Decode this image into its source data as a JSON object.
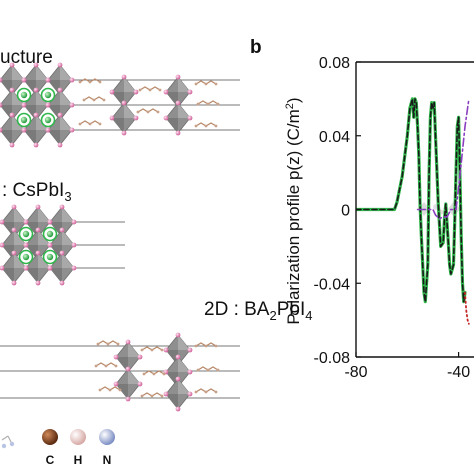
{
  "left_panel": {
    "title_fragment": "ucture",
    "label_3d": ": CsPbI",
    "label_3d_sub": "3",
    "label_2d": "2D : BA",
    "label_2d_sub": "2",
    "label_2d_rest": "PbI",
    "label_2d_sub2": "4",
    "legend_atoms": [
      "C",
      "H",
      "N"
    ],
    "atom_colors": {
      "C": "#8a4a22",
      "H": "#e8c7c4",
      "N": "#aab8d8",
      "I": "#d0609a",
      "Cs": "#2fb64a",
      "octahedron": "#8f8f8f"
    }
  },
  "right_panel": {
    "panel_letter": "b"
  },
  "chart_data": {
    "type": "line",
    "title": "",
    "ylabel": "Polarization profile p(z) (C/m",
    "ylabel_sup": "2",
    "ylabel_close": ")",
    "xlabel": "",
    "xlim": [
      -80,
      -34
    ],
    "ylim": [
      -0.08,
      0.08
    ],
    "x_ticks": [
      "-80",
      "-40"
    ],
    "x_tick_values": [
      -80,
      -40
    ],
    "y_ticks": [
      "0.08",
      "0.04",
      "0",
      "-0.04",
      "-0.08"
    ],
    "y_tick_values": [
      0.08,
      0.04,
      0,
      -0.04,
      -0.08
    ],
    "series": [
      {
        "style": "solid",
        "color": "#2fb64a",
        "x": [
          -80,
          -65,
          -64,
          -62,
          -60,
          -59,
          -58,
          -57.5,
          -57,
          -56.5,
          -56,
          -55.5,
          -55,
          -54.5,
          -54,
          -53.5,
          -53,
          -52,
          -51.5,
          -51,
          -50.5,
          -50,
          -49.5,
          -49,
          -48,
          -47,
          -46,
          -45.5,
          -45,
          -44.5,
          -44,
          -43.5,
          -43,
          -42,
          -41.5,
          -41,
          -40.5,
          -40,
          -39.5,
          -39,
          -38.5,
          -38,
          -37.5
        ],
        "y": [
          0,
          0,
          0.004,
          0.018,
          0.04,
          0.055,
          0.06,
          0.05,
          0.06,
          0.058,
          0.045,
          0.03,
          0.002,
          -0.015,
          -0.03,
          -0.045,
          -0.05,
          -0.03,
          0.02,
          0.05,
          0.058,
          0.055,
          0.058,
          0.04,
          0.005,
          -0.02,
          -0.018,
          -0.005,
          0.003,
          -0.008,
          -0.018,
          -0.03,
          -0.035,
          -0.03,
          -0.005,
          0.02,
          0.045,
          0.05,
          0.02,
          -0.015,
          -0.04,
          -0.05,
          -0.045
        ]
      },
      {
        "style": "dashed",
        "color": "#1a1a1a",
        "x": [
          -80,
          -65,
          -64,
          -62,
          -60,
          -59,
          -58,
          -57.5,
          -57,
          -56.5,
          -56,
          -55.5,
          -55,
          -54.5,
          -54,
          -53.5,
          -53,
          -52,
          -51.5,
          -51,
          -50.5,
          -50,
          -49.5,
          -49,
          -48,
          -47,
          -46,
          -45.5,
          -45,
          -44.5,
          -44,
          -43.5,
          -43,
          -42,
          -41.5,
          -41,
          -40.5,
          -40,
          -39.5,
          -39,
          -38.5,
          -38,
          -37.5
        ],
        "y": [
          0,
          0,
          0.004,
          0.018,
          0.04,
          0.055,
          0.06,
          0.05,
          0.06,
          0.058,
          0.045,
          0.03,
          0.002,
          -0.015,
          -0.03,
          -0.045,
          -0.05,
          -0.03,
          0.02,
          0.05,
          0.058,
          0.055,
          0.058,
          0.04,
          0.005,
          -0.02,
          -0.018,
          -0.005,
          0.003,
          -0.008,
          -0.018,
          -0.03,
          -0.035,
          -0.03,
          -0.005,
          0.02,
          0.045,
          0.05,
          0.02,
          -0.015,
          -0.04,
          -0.05,
          -0.045
        ]
      },
      {
        "style": "dashdot",
        "color": "#8a3fbf",
        "x": [
          -56,
          -50,
          -49,
          -47.5,
          -46,
          -44.5,
          -43,
          -41,
          -40,
          -39,
          -37.5,
          -36
        ],
        "y": [
          0,
          0,
          -0.003,
          -0.005,
          -0.004,
          -0.004,
          0,
          0,
          0.012,
          0.025,
          0.045,
          0.06
        ]
      },
      {
        "style": "dotted",
        "color": "#c42828",
        "x": [
          -37.5,
          -37,
          -36.5,
          -36
        ],
        "y": [
          -0.045,
          -0.055,
          -0.06,
          -0.062
        ]
      }
    ]
  }
}
